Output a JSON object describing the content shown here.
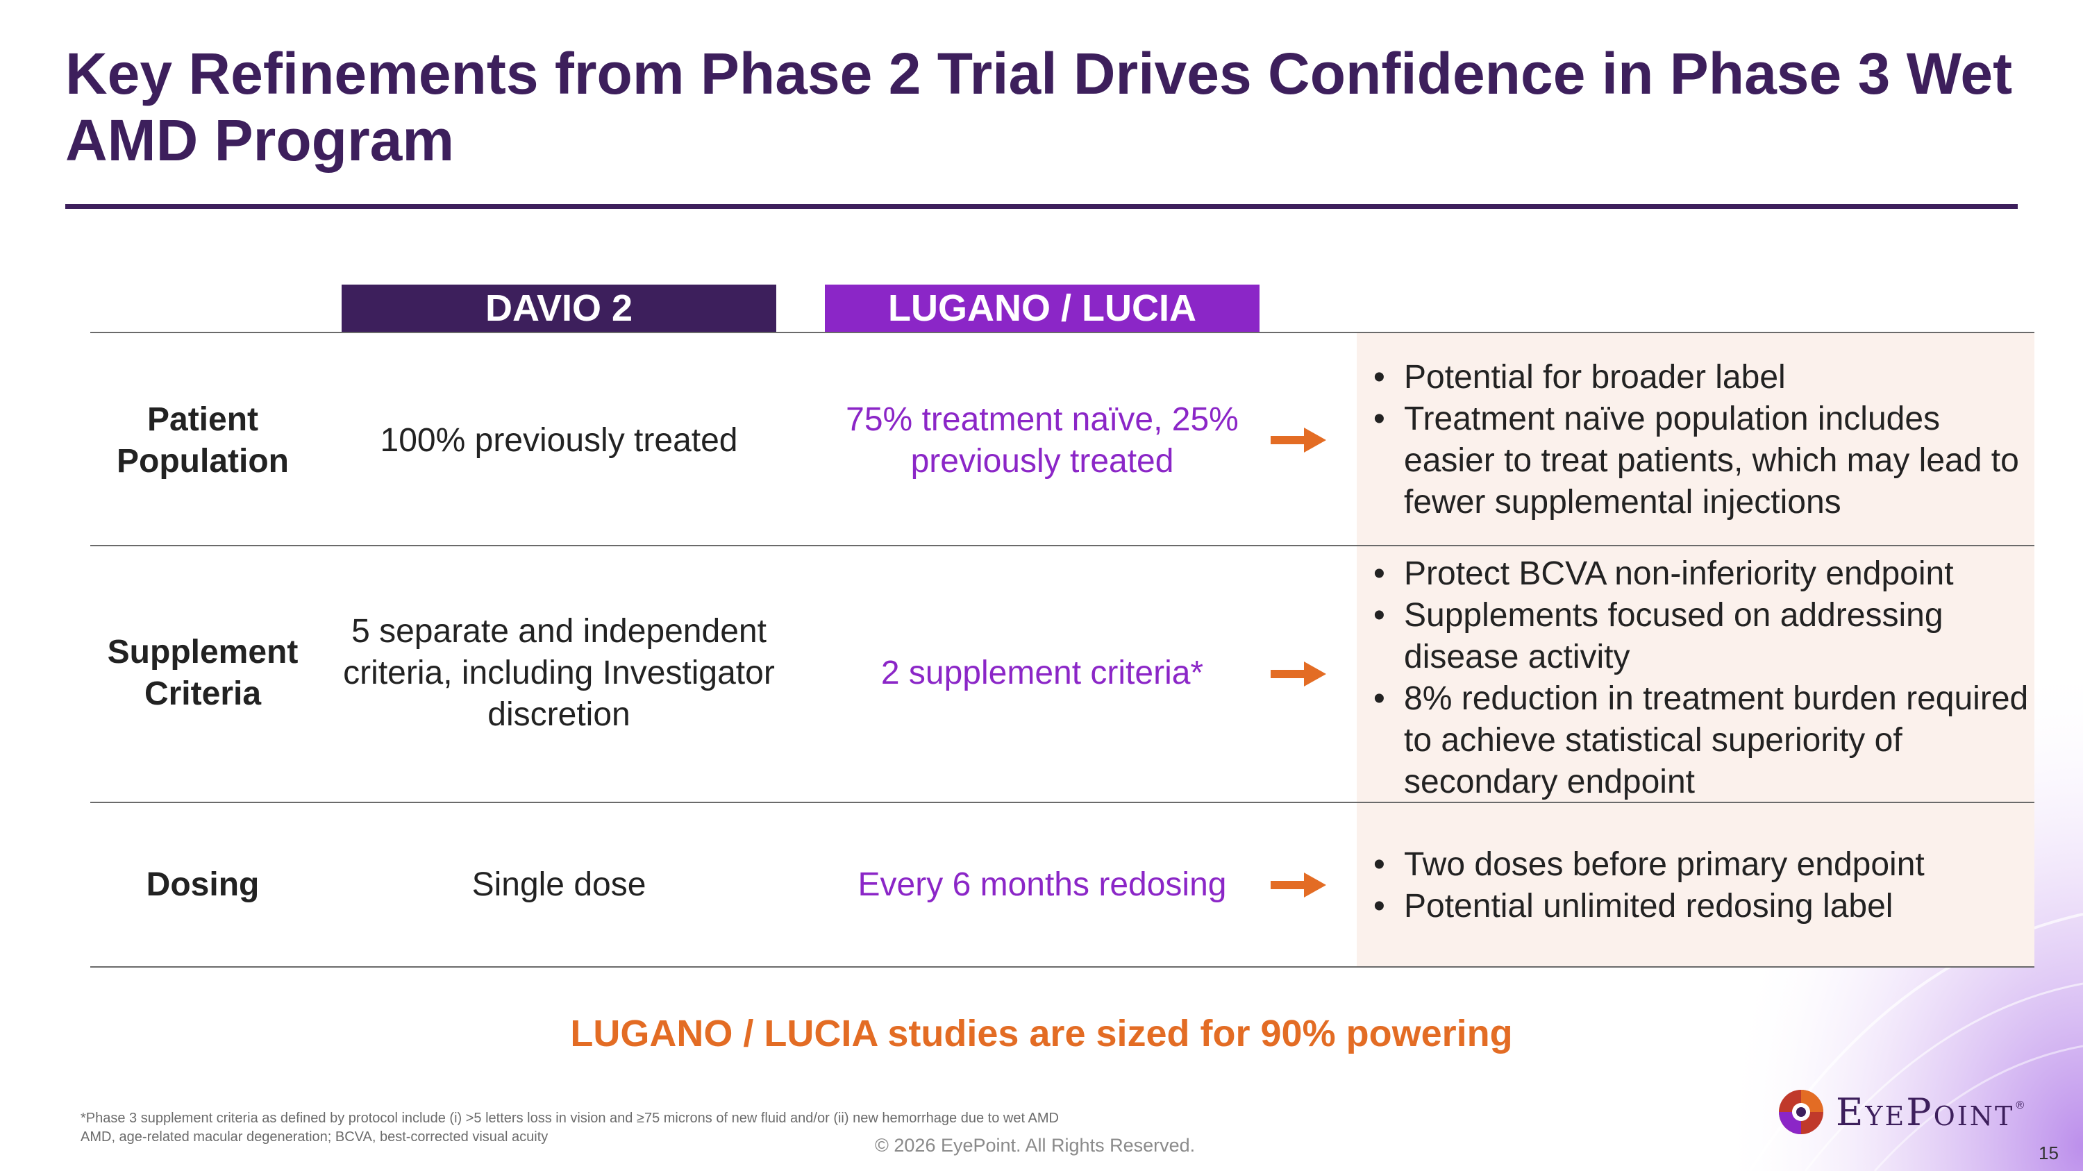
{
  "title": "Key Refinements from Phase 2 Trial Drives Confidence in Phase 3 Wet AMD Program",
  "columns": {
    "davio": "DAVIO 2",
    "lugano": "LUGANO / LUCIA"
  },
  "rows": [
    {
      "label": "Patient Population",
      "davio": "100% previously treated",
      "lugano": "75% treatment naïve, 25% previously treated",
      "bullets": [
        "Potential for broader label",
        "Treatment naïve population includes easier to treat patients, which may lead to fewer supplemental injections"
      ]
    },
    {
      "label": "Supplement Criteria",
      "davio": "5 separate and independent criteria, including Investigator discretion",
      "lugano": "2 supplement criteria*",
      "bullets": [
        "Protect BCVA non-inferiority endpoint",
        "Supplements focused on addressing disease activity",
        "8% reduction in treatment burden required to achieve statistical superiority of secondary endpoint"
      ]
    },
    {
      "label": "Dosing",
      "davio": "Single dose",
      "lugano": "Every 6 months redosing",
      "bullets": [
        "Two doses before primary endpoint",
        "Potential unlimited redosing label"
      ]
    }
  ],
  "callout": "LUGANO / LUCIA studies are sized for 90% powering",
  "footnotes": [
    "*Phase 3 supplement criteria as defined by protocol include (i) >5 letters loss in vision and ≥75 microns of new fluid and/or (ii) new hemorrhage due to wet AMD",
    "AMD, age-related macular degeneration; BCVA, best-corrected visual acuity"
  ],
  "copyright": "© 2026 EyePoint. All Rights Reserved.",
  "logo": {
    "text": "EyePoint",
    "tm": "®",
    "icon": "eyepoint-logo-icon"
  },
  "page_number": "15",
  "colors": {
    "primary_purple": "#3d1f5c",
    "accent_purple": "#8b26c7",
    "orange": "#e36c24",
    "panel_bg": "#fbf1ec"
  },
  "icons": {
    "arrow": "right-arrow-icon"
  }
}
